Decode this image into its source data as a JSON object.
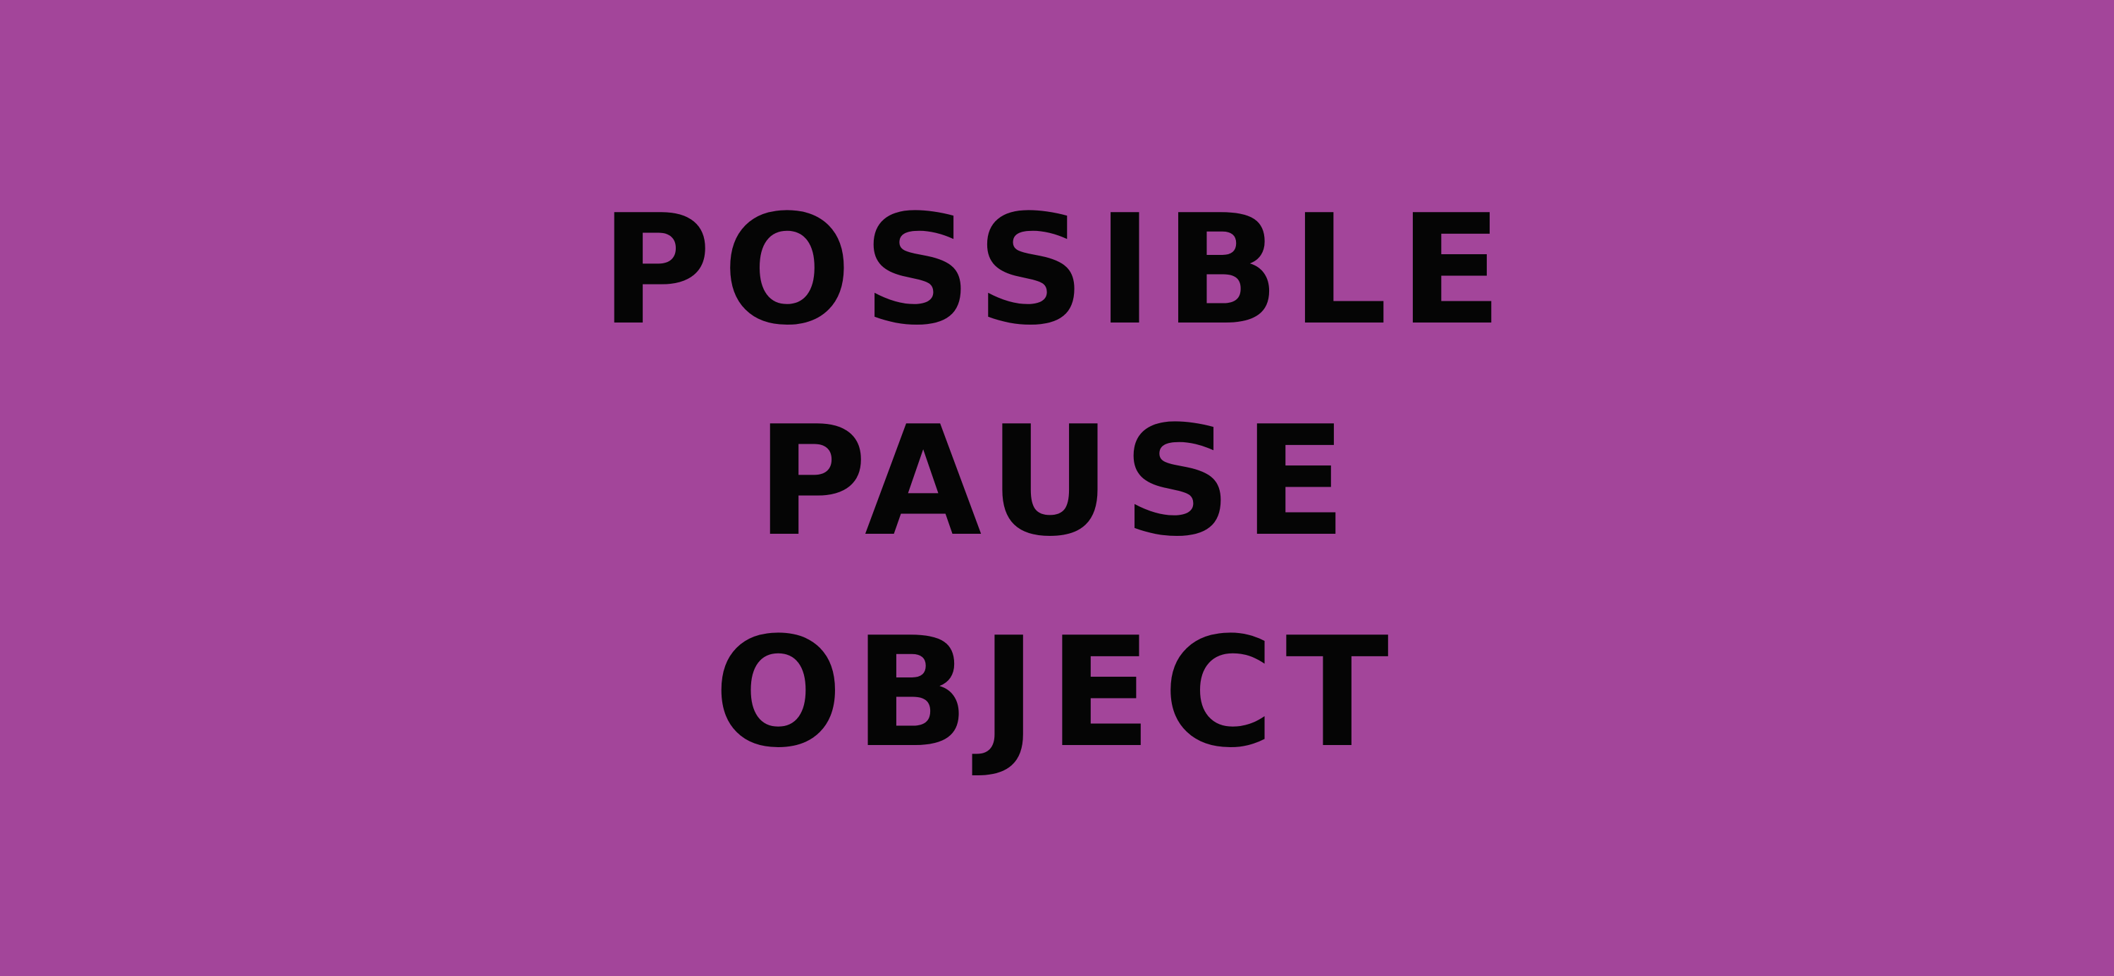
{
  "background_color": "#a3459a",
  "text_color": "#050505",
  "lines": [
    "POSSIBLE",
    "PAUSE",
    "OBJECT"
  ]
}
